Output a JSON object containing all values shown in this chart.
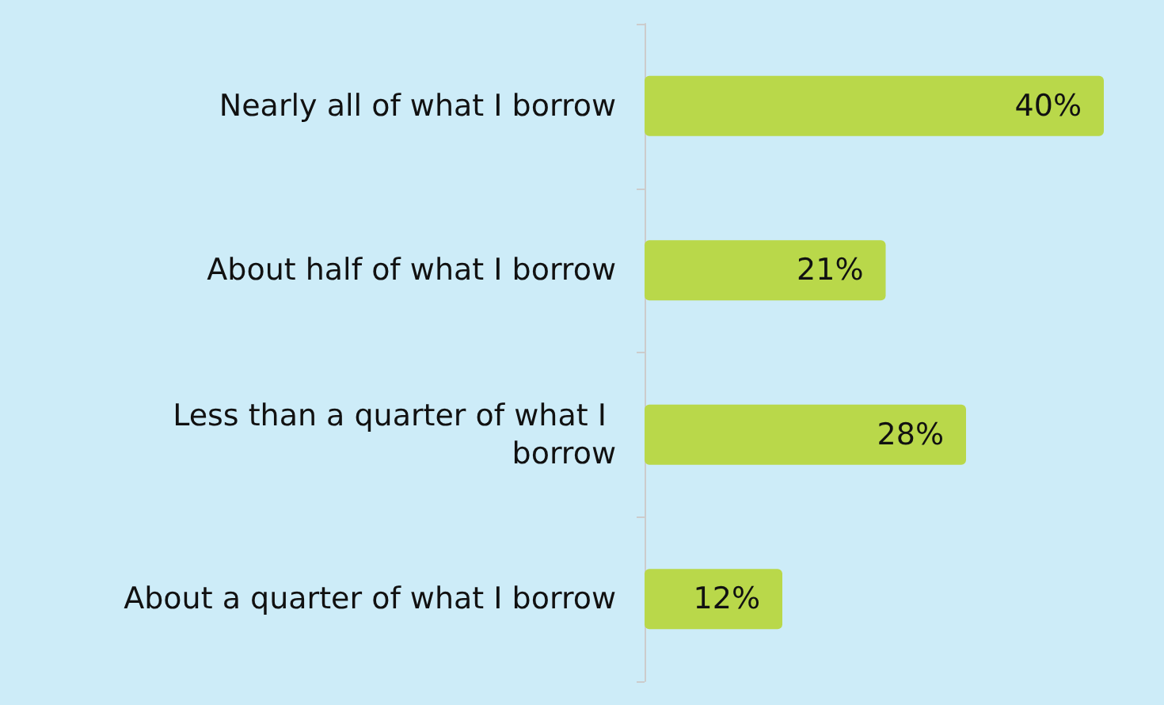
{
  "chart_data": {
    "type": "bar",
    "orientation": "horizontal",
    "categories": [
      "Nearly all of what I borrow",
      "About half of what I borrow",
      "Less than a quarter of what I borrow",
      "About a quarter of what I borrow"
    ],
    "values": [
      40,
      21,
      28,
      12
    ],
    "value_labels": [
      "40%",
      "21%",
      "28%",
      "12%"
    ],
    "color": "#b9d84a"
  }
}
